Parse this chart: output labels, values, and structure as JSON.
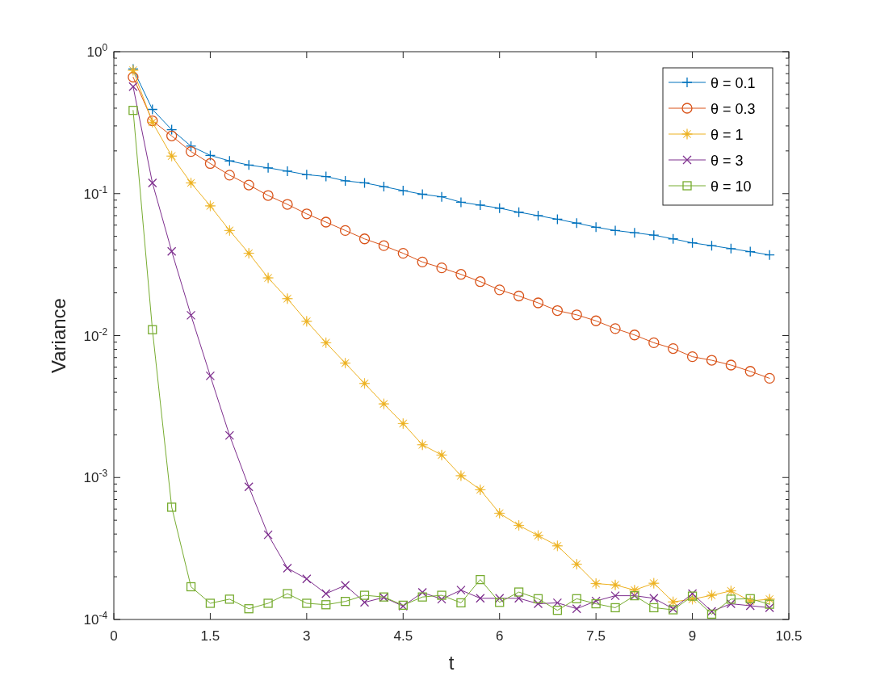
{
  "chart_data": {
    "type": "line",
    "xlabel": "t",
    "ylabel": "Variance",
    "log": "y",
    "grid": false,
    "legend": "top right",
    "line_style": "solid",
    "x": [
      0.3,
      0.6,
      0.9,
      1.2,
      1.5,
      1.8,
      2.1,
      2.4,
      2.7,
      3.0,
      3.3,
      3.6,
      3.9,
      4.2,
      4.5,
      4.8,
      5.1,
      5.4,
      5.7,
      6.0,
      6.3,
      6.6,
      6.9,
      7.2,
      7.5,
      7.8,
      8.1,
      8.4,
      8.7,
      9.0,
      9.3,
      9.6,
      9.9,
      10.2
    ],
    "xlim": [
      0,
      10.5
    ],
    "xticks": [
      0,
      1.5,
      3,
      4.5,
      6,
      7.5,
      9,
      10.5
    ],
    "ylim": [
      0.0001,
      1
    ],
    "yticks": [
      {
        "value": 0.0001,
        "label": "10$^{-4}$"
      },
      {
        "value": 0.0002,
        "label": null
      },
      {
        "value": 0.0003,
        "label": null
      },
      {
        "value": 0.0004,
        "label": null
      },
      {
        "value": 0.0005,
        "label": null
      },
      {
        "value": 0.0006,
        "label": null
      },
      {
        "value": 0.0007,
        "label": null
      },
      {
        "value": 0.0008,
        "label": null
      },
      {
        "value": 0.0009,
        "label": null
      },
      {
        "value": 0.001,
        "label": "10$^{-3}$"
      },
      {
        "value": 0.002,
        "label": null
      },
      {
        "value": 0.003,
        "label": null
      },
      {
        "value": 0.004,
        "label": null
      },
      {
        "value": 0.005,
        "label": null
      },
      {
        "value": 0.006,
        "label": null
      },
      {
        "value": 0.007,
        "label": null
      },
      {
        "value": 0.008,
        "label": null
      },
      {
        "value": 0.009,
        "label": null
      },
      {
        "value": 0.01,
        "label": "10$^{-2}$"
      },
      {
        "value": 0.02,
        "label": null
      },
      {
        "value": 0.03,
        "label": null
      },
      {
        "value": 0.04,
        "label": null
      },
      {
        "value": 0.05,
        "label": null
      },
      {
        "value": 0.06,
        "label": null
      },
      {
        "value": 0.07,
        "label": null
      },
      {
        "value": 0.08,
        "label": null
      },
      {
        "value": 0.09,
        "label": null
      },
      {
        "value": 0.1,
        "label": "10$^{-1}$"
      },
      {
        "value": 0.2,
        "label": null
      },
      {
        "value": 0.3,
        "label": null
      },
      {
        "value": 0.4,
        "label": null
      },
      {
        "value": 0.5,
        "label": null
      },
      {
        "value": 0.6,
        "label": null
      },
      {
        "value": 0.7,
        "label": null
      },
      {
        "value": 0.8,
        "label": null
      },
      {
        "value": 0.9,
        "label": null
      },
      {
        "value": 1,
        "label": "10$^{0}$"
      }
    ],
    "series": [
      {
        "name": "θ = 0.1",
        "color": "#0072bd",
        "marker": "plus",
        "values": [
          0.755,
          0.392,
          0.282,
          0.216,
          0.186,
          0.17,
          0.159,
          0.152,
          0.144,
          0.136,
          0.132,
          0.123,
          0.119,
          0.112,
          0.105,
          0.099,
          0.095,
          0.087,
          0.083,
          0.079,
          0.074,
          0.07,
          0.066,
          0.062,
          0.058,
          0.055,
          0.053,
          0.051,
          0.048,
          0.045,
          0.043,
          0.041,
          0.039,
          0.037
        ]
      },
      {
        "name": "θ = 0.3",
        "color": "#d95319",
        "marker": "circle",
        "values": [
          0.662,
          0.326,
          0.255,
          0.198,
          0.163,
          0.135,
          0.115,
          0.097,
          0.084,
          0.072,
          0.063,
          0.055,
          0.048,
          0.043,
          0.038,
          0.033,
          0.03,
          0.027,
          0.024,
          0.021,
          0.019,
          0.017,
          0.015,
          0.014,
          0.0127,
          0.0112,
          0.0101,
          0.0089,
          0.0081,
          0.0071,
          0.0067,
          0.0062,
          0.0056,
          0.005
        ]
      },
      {
        "name": "θ = 1",
        "color": "#edb120",
        "marker": "star",
        "values": [
          0.74,
          0.318,
          0.184,
          0.119,
          0.082,
          0.055,
          0.038,
          0.0255,
          0.0182,
          0.0126,
          0.0089,
          0.0064,
          0.0046,
          0.0033,
          0.0024,
          0.0017,
          0.00144,
          0.00103,
          0.00082,
          0.00056,
          0.00046,
          0.00039,
          0.00033,
          0.000245,
          0.000179,
          0.000175,
          0.000161,
          0.00018,
          0.000133,
          0.000139,
          0.000148,
          0.000159,
          0.000135,
          0.000139
        ]
      },
      {
        "name": "θ = 3",
        "color": "#7e2f8e",
        "marker": "cross",
        "values": [
          0.567,
          0.119,
          0.0392,
          0.0139,
          0.0052,
          0.00198,
          0.00086,
          0.000395,
          0.00023,
          0.000193,
          0.000152,
          0.000174,
          0.000132,
          0.000143,
          0.000124,
          0.000155,
          0.000139,
          0.000161,
          0.000141,
          0.000141,
          0.000141,
          0.000129,
          0.000131,
          0.000119,
          0.000135,
          0.000147,
          0.000147,
          0.000141,
          0.000119,
          0.000152,
          0.000114,
          0.000129,
          0.000125,
          0.000121
        ]
      },
      {
        "name": "θ = 10",
        "color": "#77ac30",
        "marker": "square",
        "values": [
          0.386,
          0.011,
          0.000618,
          0.00017,
          0.00013,
          0.000139,
          0.000119,
          0.00013,
          0.000152,
          0.00013,
          0.000127,
          0.000134,
          0.000148,
          0.000144,
          0.000126,
          0.000144,
          0.000148,
          0.000131,
          0.000191,
          0.000132,
          0.000156,
          0.00014,
          0.000116,
          0.00014,
          0.000129,
          0.000121,
          0.000147,
          0.000121,
          0.000117,
          0.000146,
          0.000109,
          0.000139,
          0.00014,
          0.000128
        ]
      }
    ]
  }
}
